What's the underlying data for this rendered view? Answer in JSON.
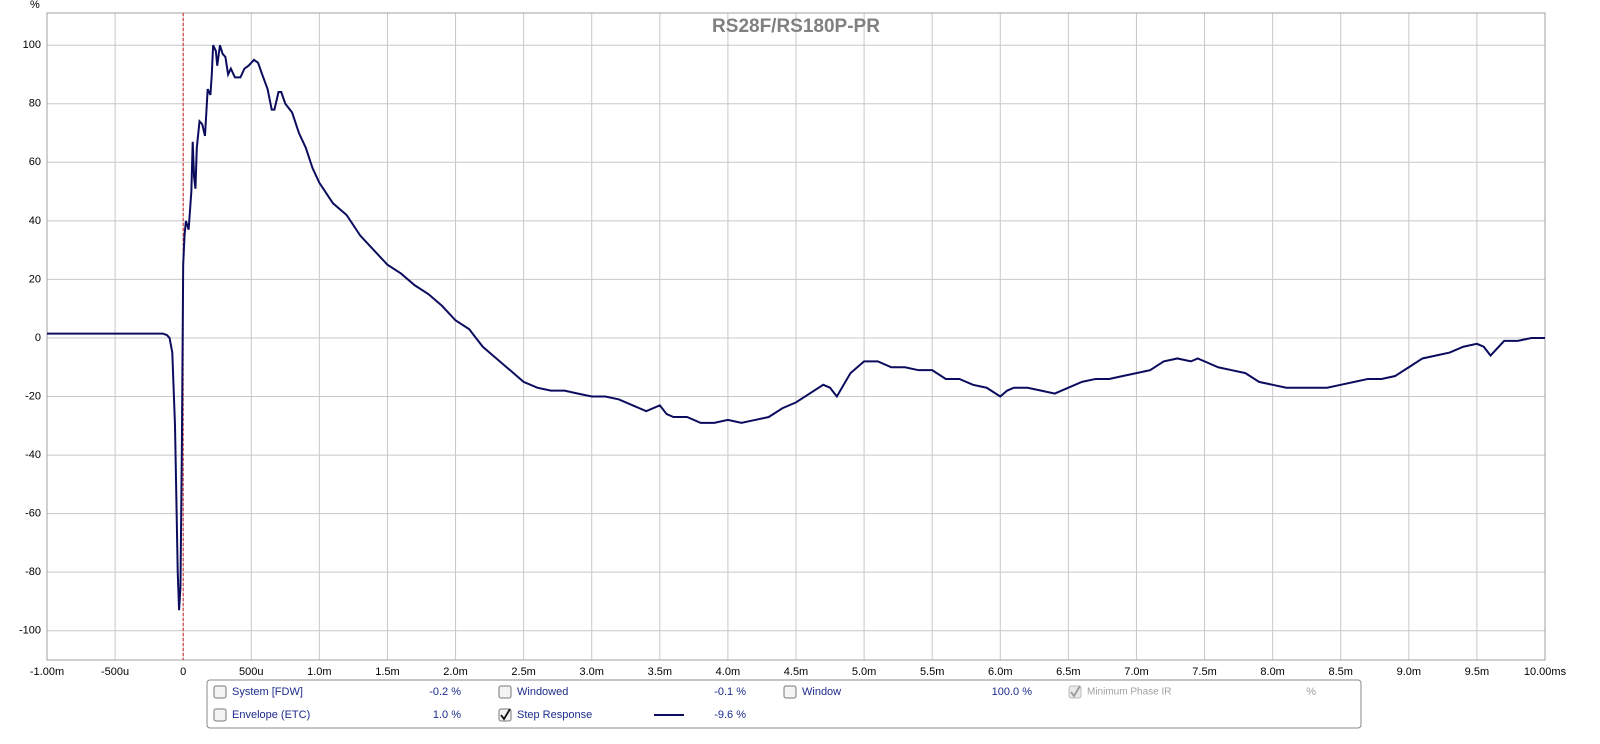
{
  "chart_data": {
    "type": "line",
    "title": "RS28F/RS180P-PR",
    "y_label": "%",
    "xlim": [
      -1,
      10
    ],
    "ylim": [
      -110,
      111
    ],
    "grid": true,
    "xticks": [
      {
        "value": -1,
        "label": "-1.00m"
      },
      {
        "value": -0.5,
        "label": "-500u"
      },
      0,
      {
        "value": 0.5,
        "label": "500u"
      },
      {
        "value": 1,
        "label": "1.0m"
      },
      {
        "value": 1.5,
        "label": "1.5m"
      },
      {
        "value": 2,
        "label": "2.0m"
      },
      {
        "value": 2.5,
        "label": "2.5m"
      },
      {
        "value": 3,
        "label": "3.0m"
      },
      {
        "value": 3.5,
        "label": "3.5m"
      },
      {
        "value": 4,
        "label": "4.0m"
      },
      {
        "value": 4.5,
        "label": "4.5m"
      },
      {
        "value": 5,
        "label": "5.0m"
      },
      {
        "value": 5.5,
        "label": "5.5m"
      },
      {
        "value": 6,
        "label": "6.0m"
      },
      {
        "value": 6.5,
        "label": "6.5m"
      },
      {
        "value": 7,
        "label": "7.0m"
      },
      {
        "value": 7.5,
        "label": "7.5m"
      },
      {
        "value": 8,
        "label": "8.0m"
      },
      {
        "value": 8.5,
        "label": "8.5m"
      },
      {
        "value": 9,
        "label": "9.0m"
      },
      {
        "value": 9.5,
        "label": "9.5m"
      },
      {
        "value": 10,
        "label": "10.00ms"
      }
    ],
    "yticks": [
      100,
      80,
      60,
      40,
      20,
      0,
      -20,
      -40,
      -60,
      -80,
      -100
    ],
    "x": [
      -1.0,
      -0.5,
      -0.15,
      -0.12,
      -0.1,
      -0.08,
      -0.06,
      -0.04,
      -0.03,
      -0.02,
      -0.01,
      0.0,
      0.01,
      0.02,
      0.04,
      0.06,
      0.07,
      0.08,
      0.09,
      0.1,
      0.12,
      0.14,
      0.16,
      0.18,
      0.2,
      0.21,
      0.22,
      0.24,
      0.25,
      0.27,
      0.29,
      0.31,
      0.33,
      0.35,
      0.38,
      0.42,
      0.45,
      0.48,
      0.52,
      0.55,
      0.58,
      0.62,
      0.65,
      0.67,
      0.7,
      0.72,
      0.75,
      0.8,
      0.85,
      0.9,
      0.95,
      1.0,
      1.1,
      1.2,
      1.3,
      1.4,
      1.5,
      1.6,
      1.7,
      1.8,
      1.9,
      2.0,
      2.1,
      2.15,
      2.2,
      2.3,
      2.4,
      2.5,
      2.6,
      2.7,
      2.8,
      2.9,
      3.0,
      3.1,
      3.2,
      3.3,
      3.4,
      3.5,
      3.55,
      3.6,
      3.7,
      3.8,
      3.9,
      4.0,
      4.1,
      4.2,
      4.3,
      4.4,
      4.5,
      4.6,
      4.7,
      4.75,
      4.8,
      4.9,
      5.0,
      5.1,
      5.2,
      5.3,
      5.4,
      5.5,
      5.6,
      5.7,
      5.8,
      5.9,
      6.0,
      6.05,
      6.1,
      6.2,
      6.3,
      6.4,
      6.5,
      6.6,
      6.7,
      6.8,
      6.9,
      7.0,
      7.1,
      7.2,
      7.3,
      7.4,
      7.45,
      7.5,
      7.6,
      7.7,
      7.8,
      7.9,
      8.0,
      8.1,
      8.2,
      8.3,
      8.4,
      8.5,
      8.6,
      8.7,
      8.8,
      8.9,
      9.0,
      9.1,
      9.2,
      9.3,
      9.4,
      9.5,
      9.55,
      9.6,
      9.7,
      9.8,
      9.9,
      10.0
    ],
    "series": [
      {
        "color": "#0c0c5e",
        "values": [
          1.5,
          1.5,
          1.5,
          1,
          0,
          -5,
          -30,
          -80,
          -93,
          -85,
          -40,
          25,
          35,
          40,
          37,
          50,
          67,
          55,
          51,
          65,
          74,
          73,
          69,
          85,
          83,
          90,
          100,
          98,
          93,
          100,
          97,
          96,
          90,
          92,
          89,
          89,
          92,
          93,
          95,
          94,
          90,
          85,
          78,
          78,
          84,
          84,
          80,
          77,
          70,
          65,
          58,
          53,
          46,
          42,
          35,
          30,
          25,
          22,
          18,
          15,
          11,
          6,
          3,
          0,
          -3,
          -7,
          -11,
          -15,
          -17,
          -18,
          -18,
          -19,
          -20,
          -20,
          -21,
          -23,
          -25,
          -23,
          -26,
          -27,
          -27,
          -29,
          -29,
          -28,
          -29,
          -28,
          -27,
          -24,
          -22,
          -19,
          -16,
          -17,
          -20,
          -12,
          -8,
          -8,
          -10,
          -10,
          -11,
          -11,
          -14,
          -14,
          -16,
          -17,
          -20,
          -18,
          -17,
          -17,
          -18,
          -19,
          -17,
          -15,
          -14,
          -14,
          -13,
          -12,
          -11,
          -8,
          -7,
          -8,
          -7,
          -8,
          -10,
          -11,
          -12,
          -15,
          -16,
          -17,
          -17,
          -17,
          -17,
          -16,
          -15,
          -14,
          -14,
          -13,
          -10,
          -7,
          -6,
          -5,
          -3,
          -2,
          -3,
          -6,
          -1,
          -1,
          0,
          0
        ]
      }
    ]
  },
  "panel": {
    "rows": [
      [
        {
          "label": "System [FDW]",
          "value": "-0.2 %",
          "checked": false
        },
        {
          "label": "Windowed",
          "value": "-0.1 %",
          "checked": false
        },
        {
          "label": "Window",
          "value": "100.0 %",
          "checked": false
        },
        {
          "label": "Minimum Phase IR",
          "value": "%",
          "checked": true,
          "disabled": true
        }
      ],
      [
        {
          "label": "Envelope (ETC)",
          "value": "1.0 %",
          "checked": false
        },
        {
          "label": "Step Response",
          "value": "-9.6 %",
          "checked": true,
          "swatch": true
        }
      ]
    ]
  }
}
